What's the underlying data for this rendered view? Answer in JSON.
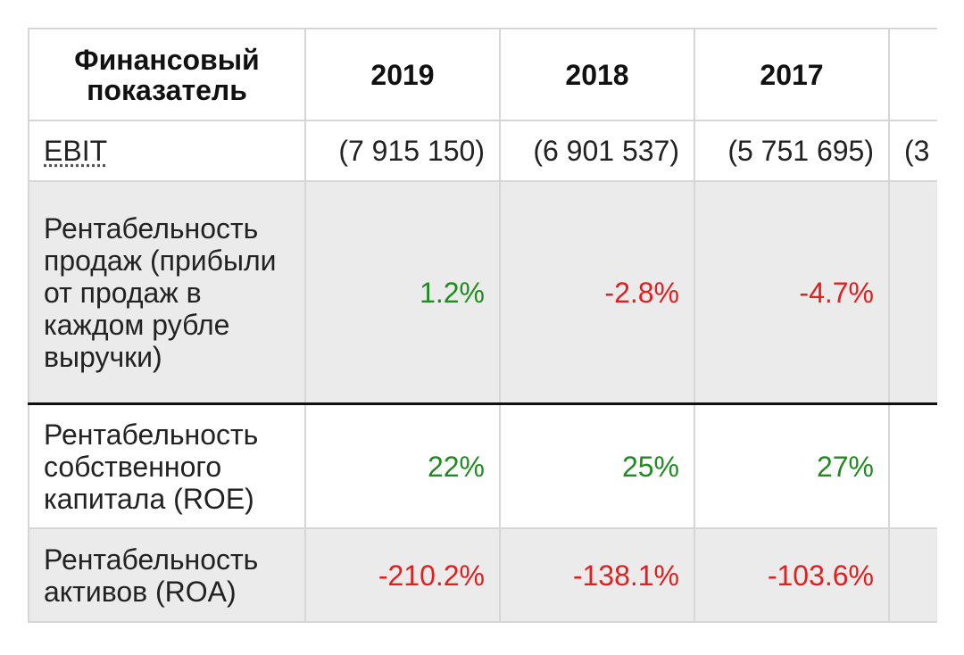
{
  "table": {
    "header": {
      "label": "Финансовый показатель",
      "years": [
        "2019",
        "2018",
        "2017",
        ""
      ]
    },
    "rows": [
      {
        "label": "EBIT",
        "values": [
          "(7 915 150)",
          "(6 901 537)",
          "(5 751 695)",
          "(3"
        ]
      },
      {
        "label": "Рентабельность продаж (прибыли от продаж в каждом рубле выручки)",
        "values": [
          "1.2%",
          "-2.8%",
          "-4.7%",
          ""
        ]
      },
      {
        "label": "Рентабельность собственного капитала (ROE)",
        "values": [
          "22%",
          "25%",
          "27%",
          ""
        ]
      },
      {
        "label": "Рентабельность активов (ROA)",
        "values": [
          "-210.2%",
          "-138.1%",
          "-103.6%",
          ""
        ]
      }
    ]
  },
  "colors": {
    "positive": "#1f8c1f",
    "negative": "#e01f1f",
    "shaded_row": "#ebebeb",
    "border": "#d6d6d6"
  }
}
